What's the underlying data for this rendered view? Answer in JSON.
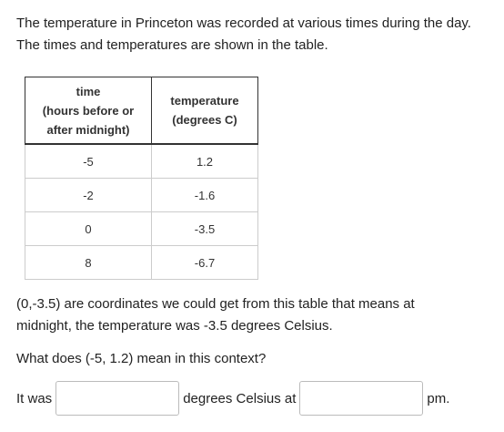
{
  "intro": "The temperature in Princeton was recorded at various times during the day. The times and temperatures are shown in the table.",
  "table": {
    "header": [
      [
        "time",
        "(hours before or",
        "after midnight)"
      ],
      [
        "temperature",
        "(degrees C)"
      ]
    ],
    "rows": [
      [
        "-5",
        "1.2"
      ],
      [
        "-2",
        "-1.6"
      ],
      [
        "0",
        "-3.5"
      ],
      [
        "8",
        "-6.7"
      ]
    ]
  },
  "explanation": "(0,-3.5) are coordinates we could get from this table that means at midnight, the temperature was -3.5 degrees Celsius.",
  "question": "What does (-5, 1.2) mean in this context?",
  "answer": {
    "before": "It was",
    "middle": "degrees Celsius at",
    "after": "pm."
  }
}
